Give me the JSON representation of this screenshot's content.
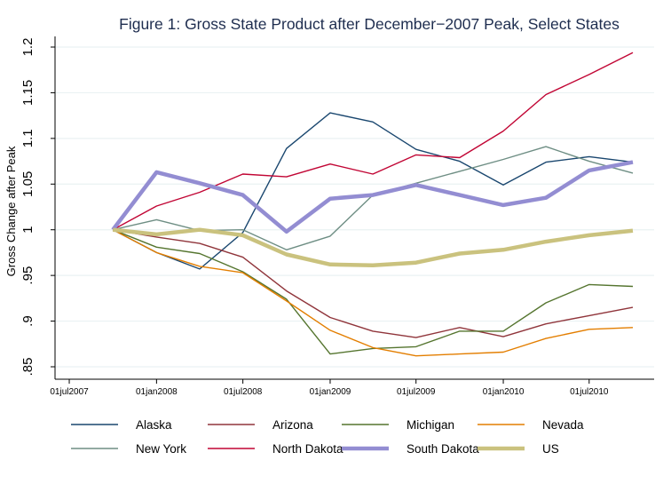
{
  "chart_data": {
    "type": "line",
    "title": "Figure 1: Gross State Product after December−2007 Peak, Select States",
    "xlabel": "",
    "ylabel": "Gross Change after Peak",
    "x": [
      "2007-10-01",
      "2008-01-01",
      "2008-04-01",
      "2008-07-01",
      "2008-10-01",
      "2009-01-01",
      "2009-04-01",
      "2009-07-01",
      "2009-10-01",
      "2010-01-01",
      "2010-04-01",
      "2010-07-01",
      "2010-10-01"
    ],
    "xlim": [
      "2007-06-01",
      "2010-11-15"
    ],
    "xticks": [
      {
        "date": "2007-07-01",
        "label": "01jul2007"
      },
      {
        "date": "2008-01-01",
        "label": "01jan2008"
      },
      {
        "date": "2008-07-01",
        "label": "01jul2008"
      },
      {
        "date": "2009-01-01",
        "label": "01jan2009"
      },
      {
        "date": "2009-07-01",
        "label": "01jul2009"
      },
      {
        "date": "2010-01-01",
        "label": "01jan2010"
      },
      {
        "date": "2010-07-01",
        "label": "01jul2010"
      }
    ],
    "ylim": [
      0.85,
      1.2
    ],
    "yticks": [
      {
        "v": 0.85,
        "label": ".85"
      },
      {
        "v": 0.9,
        "label": ".9"
      },
      {
        "v": 0.95,
        "label": ".95"
      },
      {
        "v": 1.0,
        "label": "1"
      },
      {
        "v": 1.05,
        "label": "1.05"
      },
      {
        "v": 1.1,
        "label": "1.1"
      },
      {
        "v": 1.15,
        "label": "1.15"
      },
      {
        "v": 1.2,
        "label": "1.2"
      }
    ],
    "grid": true,
    "legend": "bottom",
    "series": [
      {
        "name": "Alaska",
        "color": "#1a476f",
        "thick": false,
        "values": [
          1.0,
          0.975,
          0.957,
          0.997,
          1.089,
          1.128,
          1.118,
          1.088,
          1.075,
          1.049,
          1.074,
          1.08,
          1.074
        ]
      },
      {
        "name": "Arizona",
        "color": "#90353b",
        "thick": false,
        "values": [
          1.0,
          0.992,
          0.985,
          0.97,
          0.933,
          0.904,
          0.889,
          0.882,
          0.893,
          0.883,
          0.897,
          0.906,
          0.915
        ]
      },
      {
        "name": "Michigan",
        "color": "#55752f",
        "thick": false,
        "values": [
          1.0,
          0.981,
          0.974,
          0.954,
          0.924,
          0.864,
          0.87,
          0.872,
          0.889,
          0.889,
          0.92,
          0.94,
          0.938
        ]
      },
      {
        "name": "Nevada",
        "color": "#e37e00",
        "thick": false,
        "values": [
          1.0,
          0.975,
          0.96,
          0.953,
          0.922,
          0.89,
          0.871,
          0.862,
          0.864,
          0.866,
          0.881,
          0.891,
          0.893
        ]
      },
      {
        "name": "New York",
        "color": "#6e8e84",
        "thick": false,
        "values": [
          1.0,
          1.011,
          0.999,
          1.0,
          0.978,
          0.993,
          1.038,
          1.051,
          1.064,
          1.077,
          1.091,
          1.075,
          1.062
        ]
      },
      {
        "name": "North Dakota",
        "color": "#c10534",
        "thick": false,
        "values": [
          1.0,
          1.026,
          1.041,
          1.061,
          1.058,
          1.072,
          1.061,
          1.082,
          1.079,
          1.108,
          1.148,
          1.17,
          1.194
        ]
      },
      {
        "name": "South Dakota",
        "color": "#938dd2",
        "thick": true,
        "values": [
          1.0,
          1.063,
          1.051,
          1.038,
          0.998,
          1.034,
          1.038,
          1.049,
          1.038,
          1.027,
          1.035,
          1.065,
          1.074
        ]
      },
      {
        "name": "US",
        "color": "#cac27e",
        "thick": true,
        "values": [
          1.0,
          0.995,
          1.0,
          0.994,
          0.973,
          0.962,
          0.961,
          0.964,
          0.974,
          0.978,
          0.987,
          0.994,
          0.999
        ]
      }
    ]
  }
}
